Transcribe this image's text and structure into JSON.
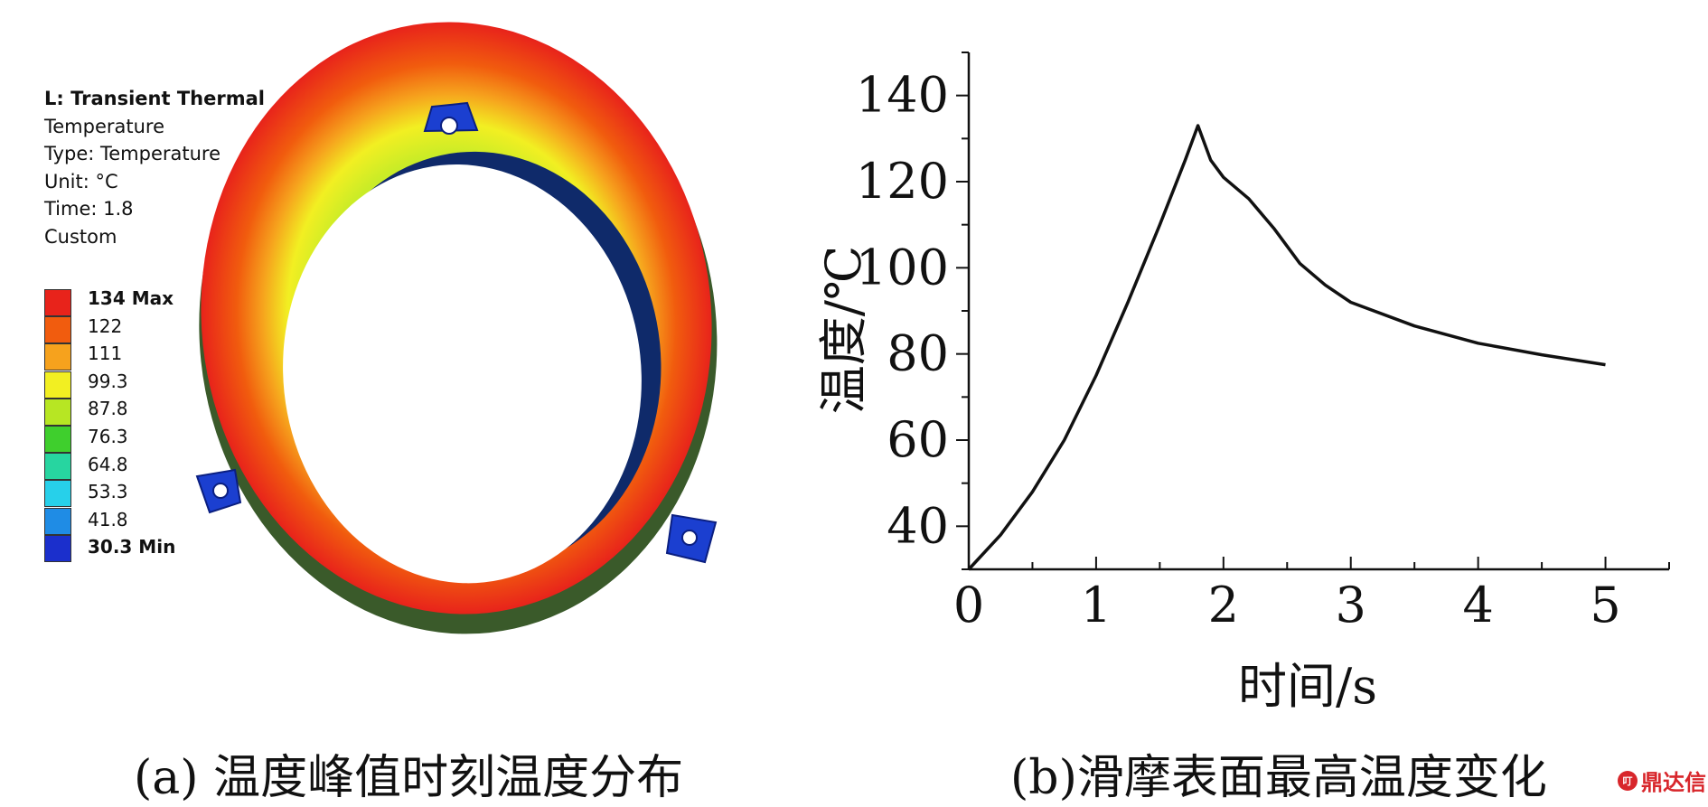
{
  "panel_a": {
    "header": [
      "L: Transient Thermal",
      "Temperature",
      "Type: Temperature",
      "Unit: °C",
      "Time: 1.8",
      "Custom"
    ],
    "legend": {
      "labels": [
        "134 Max",
        "122",
        "111",
        "99.3",
        "87.8",
        "76.3",
        "64.8",
        "53.3",
        "41.8",
        "30.3 Min"
      ],
      "colors": [
        "#e8231b",
        "#f15c0e",
        "#f6a21d",
        "#f2ef22",
        "#b7e623",
        "#3fcf2d",
        "#27d5a0",
        "#27d0ea",
        "#1f8ce5",
        "#1b2fcc"
      ]
    },
    "caption": "(a) 温度峰值时刻温度分布"
  },
  "panel_b": {
    "caption": "(b)滑摩表面最高温度变化"
  },
  "watermark": {
    "logo": "叮",
    "text": "鼎达信"
  },
  "chart_data": {
    "type": "line",
    "xlabel": "时间/s",
    "ylabel": "温度/℃",
    "xlim": [
      0,
      5.5
    ],
    "ylim": [
      30,
      150
    ],
    "xticks": [
      0,
      1,
      2,
      3,
      4,
      5
    ],
    "yticks": [
      40,
      60,
      80,
      100,
      120,
      140
    ],
    "grid": false,
    "series": [
      {
        "x": [
          0,
          0.25,
          0.5,
          0.75,
          1.0,
          1.25,
          1.5,
          1.7,
          1.8,
          1.9,
          2.0,
          2.2,
          2.4,
          2.6,
          2.8,
          3.0,
          3.5,
          4.0,
          4.5,
          5.0
        ],
        "y": [
          30,
          38,
          48,
          60,
          75,
          92,
          110,
          125,
          133,
          125,
          121,
          116,
          109,
          101,
          96,
          92,
          86.5,
          82.5,
          79.8,
          77.5
        ]
      }
    ]
  }
}
